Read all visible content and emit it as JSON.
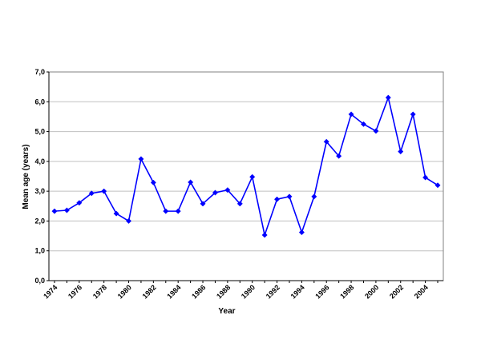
{
  "colors": {
    "series": "#0000ff",
    "axis": "#000000",
    "grid": "#c0c0c0",
    "background": "#ffffff"
  },
  "chart_data": {
    "type": "line",
    "xlabel": "Year",
    "ylabel": "Mean age (years)",
    "ylim": [
      0,
      7
    ],
    "y_ticks": [
      "0,0",
      "1,0",
      "2,0",
      "3,0",
      "4,0",
      "5,0",
      "6,0",
      "7,0"
    ],
    "x_ticks": [
      "1974",
      "1976",
      "1978",
      "1980",
      "1982",
      "1984",
      "1986",
      "1988",
      "1990",
      "1992",
      "1994",
      "1996",
      "1998",
      "2000",
      "2002",
      "2004"
    ],
    "grid": "horizontal",
    "marker": "diamond",
    "x": [
      1974,
      1975,
      1976,
      1977,
      1978,
      1979,
      1980,
      1981,
      1982,
      1983,
      1984,
      1985,
      1986,
      1987,
      1988,
      1989,
      1990,
      1991,
      1992,
      1993,
      1994,
      1995,
      1996,
      1997,
      1998,
      1999,
      2000,
      2001,
      2002,
      2003,
      2004,
      2005
    ],
    "series": [
      {
        "values": [
          2.33,
          2.36,
          2.61,
          2.93,
          3.0,
          2.25,
          2.0,
          4.08,
          3.29,
          2.33,
          2.33,
          3.3,
          2.58,
          2.95,
          3.04,
          2.58,
          3.48,
          1.53,
          2.73,
          2.82,
          1.62,
          2.82,
          4.66,
          4.18,
          5.58,
          5.25,
          5.02,
          6.14,
          4.33,
          5.58,
          3.46,
          3.2
        ]
      }
    ]
  }
}
